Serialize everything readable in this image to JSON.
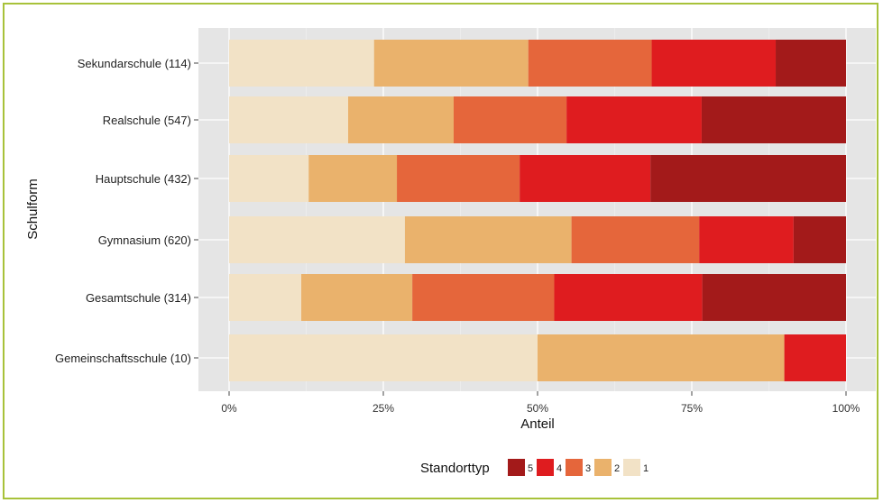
{
  "chart_data": {
    "type": "bar",
    "orientation": "horizontal",
    "stacked": true,
    "percent": true,
    "xlabel": "Anteil",
    "ylabel": "Schulform",
    "xlim": [
      0,
      100
    ],
    "xticks": [
      "0%",
      "25%",
      "50%",
      "75%",
      "100%"
    ],
    "categories": [
      "Sekundarschule (114)",
      "Realschule (547)",
      "Hauptschule (432)",
      "Gymnasium (620)",
      "Gesamtschule (314)",
      "Gemeinschaftsschule (10)"
    ],
    "legend": {
      "title": "Standorttyp",
      "placement": "bottom",
      "order": [
        "5",
        "4",
        "3",
        "2",
        "1"
      ]
    },
    "series": [
      {
        "name": "1",
        "color": "#f2e2c6",
        "values": [
          23.5,
          19.3,
          12.9,
          28.5,
          11.7,
          50.0
        ]
      },
      {
        "name": "2",
        "color": "#eab26c",
        "values": [
          25.0,
          17.1,
          14.3,
          27.0,
          18.0,
          40.0
        ]
      },
      {
        "name": "3",
        "color": "#e5663b",
        "values": [
          20.0,
          18.3,
          19.9,
          20.7,
          23.0,
          0.0
        ]
      },
      {
        "name": "4",
        "color": "#df1c1f",
        "values": [
          20.1,
          21.9,
          21.2,
          15.3,
          24.0,
          10.0
        ]
      },
      {
        "name": "5",
        "color": "#a31a1a",
        "values": [
          11.4,
          23.4,
          31.7,
          8.5,
          23.3,
          0.0
        ]
      }
    ]
  }
}
